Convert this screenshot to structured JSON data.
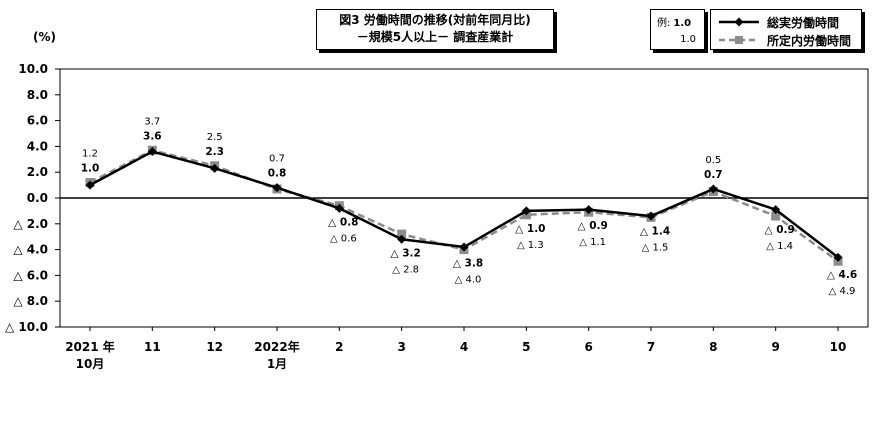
{
  "chart_data": {
    "type": "line",
    "title_line1": "図3  労働時間の推移(対前年同月比)",
    "title_line2": "－規模5人以上－  調査産業計",
    "unit_label": "(%)",
    "example": {
      "label": "例:",
      "value1": "1.0",
      "value2": "1.0"
    },
    "ylim": [
      -10,
      10
    ],
    "y_ticks": [
      "10.0",
      "8.0",
      "6.0",
      "4.0",
      "2.0",
      "0.0",
      "△ 2.0",
      "△ 4.0",
      "△ 6.0",
      "△ 8.0",
      "△ 10.0"
    ],
    "x_ticks": [
      {
        "line1": "2021 年",
        "line2": "10月"
      },
      {
        "line1": "11",
        "line2": ""
      },
      {
        "line1": "12",
        "line2": ""
      },
      {
        "line1": "2022年",
        "line2": "1月"
      },
      {
        "line1": "2",
        "line2": ""
      },
      {
        "line1": "3",
        "line2": ""
      },
      {
        "line1": "4",
        "line2": ""
      },
      {
        "line1": "5",
        "line2": ""
      },
      {
        "line1": "6",
        "line2": ""
      },
      {
        "line1": "7",
        "line2": ""
      },
      {
        "line1": "8",
        "line2": ""
      },
      {
        "line1": "9",
        "line2": ""
      },
      {
        "line1": "10",
        "line2": ""
      }
    ],
    "series": [
      {
        "name": "総実労働時間",
        "color": "#000000",
        "values": [
          1.0,
          3.6,
          2.3,
          0.8,
          -0.8,
          -3.2,
          -3.8,
          -1.0,
          -0.9,
          -1.4,
          0.7,
          -0.9,
          -4.6
        ],
        "labels": [
          "1.0",
          "3.6",
          "2.3",
          "0.8",
          "△ 0.8",
          "△ 3.2",
          "△ 3.8",
          "△ 1.0",
          "△ 0.9",
          "△ 1.4",
          "0.7",
          "△ 0.9",
          "△ 4.6"
        ]
      },
      {
        "name": "所定内労働時間",
        "color": "#8c8c8c",
        "values": [
          1.2,
          3.7,
          2.5,
          0.7,
          -0.6,
          -2.8,
          -4.0,
          -1.3,
          -1.1,
          -1.5,
          0.5,
          -1.4,
          -4.9
        ],
        "labels": [
          "1.2",
          "3.7",
          "2.5",
          "0.7",
          "△ 0.6",
          "△ 2.8",
          "△ 4.0",
          "△ 1.3",
          "△ 1.1",
          "△ 1.5",
          "0.5",
          "△ 1.4",
          "△ 4.9"
        ]
      }
    ],
    "grid": false,
    "legend_position": "top-right"
  }
}
